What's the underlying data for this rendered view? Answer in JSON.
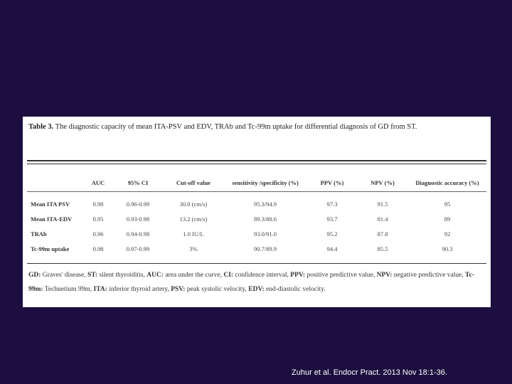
{
  "table": {
    "title_bold": "Table 3.",
    "title_rest": " The diagnostic capacity of mean ITA-PSV and EDV, TRAb and Tc-99m uptake for differential diagnosis of GD from ST.",
    "headers": [
      "",
      "AUC",
      "95% CI",
      "Cut-off value",
      "sensitivity /specificity (%)",
      "PPV (%)",
      "NPV (%)",
      "Diagnostic accuracy (%)"
    ],
    "rows": [
      [
        "Mean ITA PSV",
        "0.98",
        "0.96-0.99",
        "30.0 (cm/s)",
        "95.3/94.9",
        "97.3",
        "91.5",
        "95"
      ],
      [
        "Mean ITA-EDV",
        "0.95",
        "0.93-0.98",
        "13.2 (cm/s)",
        "89.3/88.6",
        "93.7",
        "81.4",
        "89"
      ],
      [
        "TRAb",
        "0.96",
        "0.94-0.98",
        "1.0 IU/L",
        "93.0/91.0",
        "95.2",
        "87.8",
        "92"
      ],
      [
        "Tc-99m uptake",
        "0.98",
        "0.97-0.99",
        "3%",
        "90.7/89.9",
        "94.4",
        "85.5",
        "90.3"
      ]
    ],
    "footnote": [
      {
        "term": "GD:",
        "def": " Graves' disease, "
      },
      {
        "term": "ST:",
        "def": " silent thyroiditis, "
      },
      {
        "term": "AUC:",
        "def": " area under the curve, "
      },
      {
        "term": "CI:",
        "def": " confidence interval, "
      },
      {
        "term": "PPV:",
        "def": " positive predictive value, "
      },
      {
        "term": "NPV:",
        "def": " negative predictive value, "
      },
      {
        "term": "Tc-99m:",
        "def": " Technetium 99m, "
      },
      {
        "term": "ITA:",
        "def": " inferior thyroid artery, "
      },
      {
        "term": "PSV:",
        "def": " peak systolic velocity, "
      },
      {
        "term": "EDV:",
        "def": " end-diastolic velocity."
      }
    ]
  },
  "citation": "Zuhur et al. Endocr Pract. 2013 Nov 18:1-36."
}
